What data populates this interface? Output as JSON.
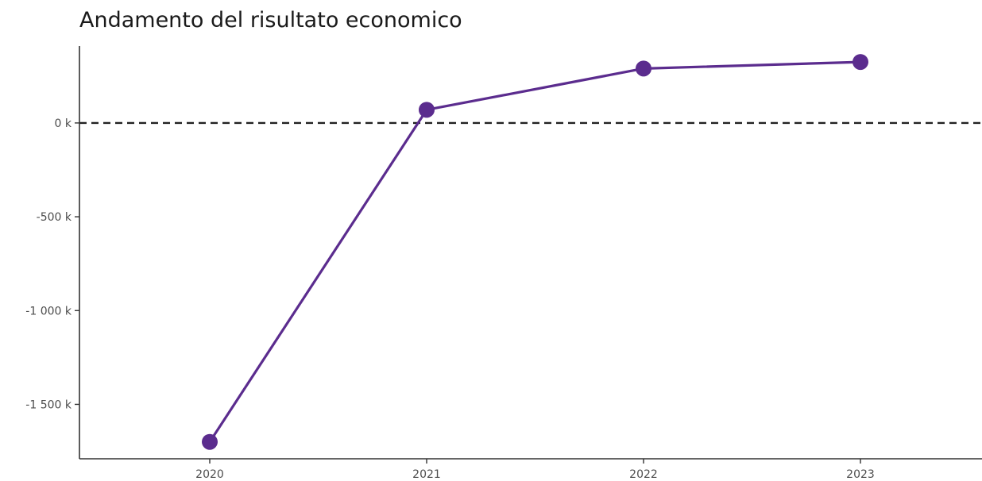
{
  "chart_data": {
    "type": "line",
    "title": "Andamento del risultato economico",
    "xlabel": "",
    "ylabel": "",
    "x": [
      "2020",
      "2021",
      "2022",
      "2023"
    ],
    "y": [
      -1700,
      70,
      290,
      325
    ],
    "y_unit_suffix": " k",
    "y_ticks": [
      0,
      -500,
      -1000,
      -1500
    ],
    "y_tick_labels": [
      "0 k",
      "-500 k",
      "-1 000 k",
      "-1 500 k"
    ],
    "x_tick_labels": [
      "2020",
      "2021",
      "2022",
      "2023"
    ],
    "ylim": [
      -1790,
      410
    ],
    "reference_line": {
      "y": 0,
      "style": "dashed"
    },
    "grid": false,
    "legend": "none",
    "colors": {
      "series": "#5b2c8e",
      "axis": "#333333",
      "reference": "#222222"
    }
  }
}
